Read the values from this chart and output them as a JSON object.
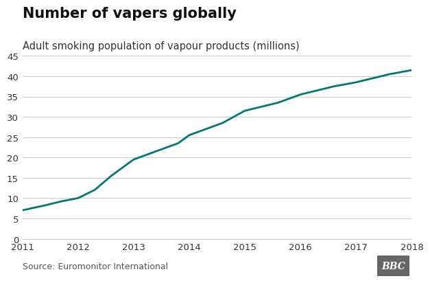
{
  "title": "Number of vapers globally",
  "subtitle": "Adult smoking population of vapour products (millions)",
  "x": [
    2011,
    2011.4,
    2011.7,
    2012.0,
    2012.3,
    2012.6,
    2013.0,
    2013.4,
    2013.8,
    2014.0,
    2014.3,
    2014.6,
    2015.0,
    2015.3,
    2015.6,
    2016.0,
    2016.3,
    2016.6,
    2017.0,
    2017.3,
    2017.6,
    2018.0
  ],
  "y": [
    7.0,
    8.2,
    9.2,
    10.0,
    12.0,
    15.5,
    19.5,
    21.5,
    23.5,
    25.5,
    27.0,
    28.5,
    31.5,
    32.5,
    33.5,
    35.5,
    36.5,
    37.5,
    38.5,
    39.5,
    40.5,
    41.5
  ],
  "line_color": "#007870",
  "line_width": 2.0,
  "xlim": [
    2011,
    2018
  ],
  "ylim": [
    0,
    47
  ],
  "yticks": [
    0,
    5,
    10,
    15,
    20,
    25,
    30,
    35,
    40,
    45
  ],
  "xticks": [
    2011,
    2012,
    2013,
    2014,
    2015,
    2016,
    2017,
    2018
  ],
  "grid_color": "#cccccc",
  "background_color": "#ffffff",
  "source_text": "Source: Euromonitor International",
  "source_fontsize": 9,
  "title_fontsize": 15,
  "subtitle_fontsize": 10.5,
  "tick_fontsize": 9.5,
  "bbc_text": "BBC",
  "bbc_bg": "#666666",
  "bbc_text_color": "#ffffff"
}
